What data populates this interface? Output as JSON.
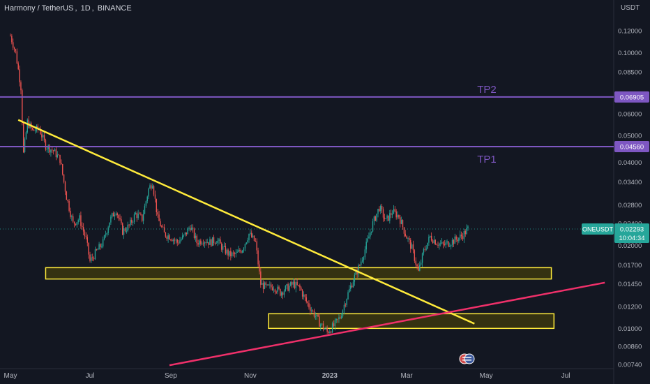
{
  "header": {
    "symbol": "Harmony / TetherUS",
    "interval": "1D",
    "exchange": "BINANCE"
  },
  "price_scale_unit": "USDT",
  "colors": {
    "background": "#131722",
    "candle_up": "#26a69a",
    "candle_down": "#ef5350",
    "trendline": "#ffeb3b",
    "support_line": "#f0306a",
    "tp_line": "#7e57c2",
    "zone_border": "#ffeb3b",
    "zone_fill": "#3a3510",
    "last_price_badge": "#26a69a"
  },
  "chart_data": {
    "type": "candlestick",
    "title": "Harmony / TetherUS, 1D, BINANCE",
    "xlabel": "",
    "ylabel": "USDT",
    "y_scale": "log",
    "ylim": [
      0.0071,
      0.148
    ],
    "x_range": [
      "2022-05-01",
      "2023-07-31"
    ],
    "x_ticks": [
      {
        "label": "May",
        "date": "2022-05-01"
      },
      {
        "label": "Jul",
        "date": "2022-07-01"
      },
      {
        "label": "Sep",
        "date": "2022-09-01"
      },
      {
        "label": "Nov",
        "date": "2022-11-01"
      },
      {
        "label": "2023",
        "date": "2023-01-01"
      },
      {
        "label": "Mar",
        "date": "2023-03-01"
      },
      {
        "label": "May",
        "date": "2023-05-01"
      },
      {
        "label": "Jul",
        "date": "2023-07-01"
      }
    ],
    "y_ticks": [
      "0.12000",
      "0.10000",
      "0.08500",
      "0.07000",
      "0.06000",
      "0.05000",
      "0.04000",
      "0.03400",
      "0.02800",
      "0.02400",
      "0.02000",
      "0.01700",
      "0.01450",
      "0.01200",
      "0.01000",
      "0.00860",
      "0.00740"
    ],
    "price_path": [
      [
        "2022-05-01",
        0.115
      ],
      [
        "2022-05-05",
        0.1
      ],
      [
        "2022-05-09",
        0.075
      ],
      [
        "2022-05-11",
        0.043
      ],
      [
        "2022-05-14",
        0.056
      ],
      [
        "2022-05-18",
        0.052
      ],
      [
        "2022-05-23",
        0.053
      ],
      [
        "2022-05-28",
        0.046
      ],
      [
        "2022-06-03",
        0.044
      ],
      [
        "2022-06-08",
        0.041
      ],
      [
        "2022-06-13",
        0.03
      ],
      [
        "2022-06-18",
        0.024
      ],
      [
        "2022-06-23",
        0.025
      ],
      [
        "2022-06-28",
        0.021
      ],
      [
        "2022-07-01",
        0.0175
      ],
      [
        "2022-07-06",
        0.019
      ],
      [
        "2022-07-11",
        0.0205
      ],
      [
        "2022-07-16",
        0.0245
      ],
      [
        "2022-07-21",
        0.027
      ],
      [
        "2022-07-26",
        0.0225
      ],
      [
        "2022-07-31",
        0.0235
      ],
      [
        "2022-08-05",
        0.026
      ],
      [
        "2022-08-10",
        0.025
      ],
      [
        "2022-08-15",
        0.032
      ],
      [
        "2022-08-18",
        0.034
      ],
      [
        "2022-08-22",
        0.025
      ],
      [
        "2022-08-27",
        0.022
      ],
      [
        "2022-09-01",
        0.0215
      ],
      [
        "2022-09-06",
        0.0205
      ],
      [
        "2022-09-11",
        0.0215
      ],
      [
        "2022-09-16",
        0.0235
      ],
      [
        "2022-09-21",
        0.0205
      ],
      [
        "2022-09-26",
        0.021
      ],
      [
        "2022-10-01",
        0.0205
      ],
      [
        "2022-10-06",
        0.021
      ],
      [
        "2022-10-11",
        0.0195
      ],
      [
        "2022-10-16",
        0.0185
      ],
      [
        "2022-10-21",
        0.0185
      ],
      [
        "2022-10-26",
        0.0195
      ],
      [
        "2022-10-31",
        0.022
      ],
      [
        "2022-11-05",
        0.0205
      ],
      [
        "2022-11-09",
        0.0145
      ],
      [
        "2022-11-14",
        0.014
      ],
      [
        "2022-11-19",
        0.0142
      ],
      [
        "2022-11-24",
        0.0135
      ],
      [
        "2022-11-29",
        0.014
      ],
      [
        "2022-12-04",
        0.0145
      ],
      [
        "2022-12-09",
        0.014
      ],
      [
        "2022-12-14",
        0.0125
      ],
      [
        "2022-12-19",
        0.0115
      ],
      [
        "2022-12-24",
        0.0105
      ],
      [
        "2022-12-30",
        0.0097
      ],
      [
        "2023-01-04",
        0.0102
      ],
      [
        "2023-01-09",
        0.011
      ],
      [
        "2023-01-14",
        0.013
      ],
      [
        "2023-01-19",
        0.015
      ],
      [
        "2023-01-24",
        0.017
      ],
      [
        "2023-01-29",
        0.02
      ],
      [
        "2023-02-03",
        0.024
      ],
      [
        "2023-02-08",
        0.0275
      ],
      [
        "2023-02-13",
        0.0245
      ],
      [
        "2023-02-18",
        0.0265
      ],
      [
        "2023-02-23",
        0.0255
      ],
      [
        "2023-02-28",
        0.022
      ],
      [
        "2023-03-05",
        0.0195
      ],
      [
        "2023-03-10",
        0.016
      ],
      [
        "2023-03-14",
        0.019
      ],
      [
        "2023-03-19",
        0.0215
      ],
      [
        "2023-03-24",
        0.0205
      ],
      [
        "2023-03-29",
        0.02
      ],
      [
        "2023-04-03",
        0.0205
      ],
      [
        "2023-04-08",
        0.021
      ],
      [
        "2023-04-13",
        0.0218
      ],
      [
        "2023-04-17",
        0.02293
      ]
    ],
    "horizontal_lines": [
      {
        "label": "TP2",
        "value": 0.06905,
        "value_label": "0.06905"
      },
      {
        "label": "TP1",
        "value": 0.0456,
        "value_label": "0.04560"
      }
    ],
    "trendlines": [
      {
        "name": "resistance",
        "from": [
          "2022-05-07",
          0.057
        ],
        "to": [
          "2023-04-22",
          0.0104
        ]
      },
      {
        "name": "support",
        "from": [
          "2022-08-31",
          0.00735
        ],
        "to": [
          "2023-07-31",
          0.01465
        ]
      }
    ],
    "zones": [
      {
        "from": "2022-05-28",
        "to": "2023-06-20",
        "low": 0.0151,
        "high": 0.0166
      },
      {
        "from": "2022-11-15",
        "to": "2023-06-22",
        "low": 0.01,
        "high": 0.0113
      }
    ],
    "last_price": {
      "symbol": "ONEUSDT",
      "value": "0.02293",
      "countdown": "10:04:34"
    }
  }
}
